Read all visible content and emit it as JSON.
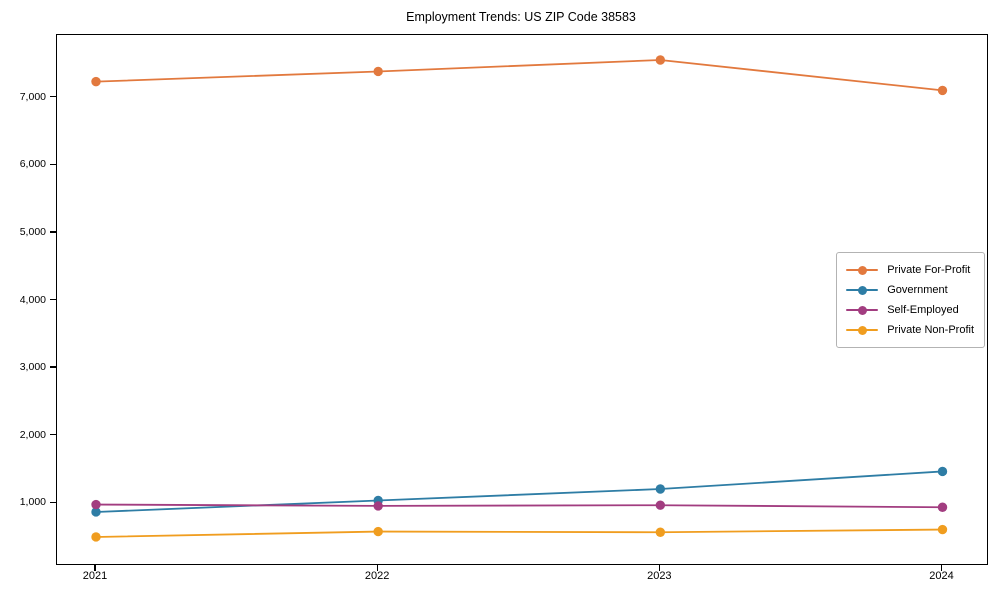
{
  "title": "Employment Trends: US ZIP Code 38583",
  "chart_data": {
    "type": "line",
    "title": "Employment Trends: US ZIP Code 38583",
    "categories": [
      "2021",
      "2022",
      "2023",
      "2024"
    ],
    "series": [
      {
        "name": "Private For-Profit",
        "color": "#e2793e",
        "values": [
          7240,
          7390,
          7560,
          7110
        ]
      },
      {
        "name": "Government",
        "color": "#2e7da5",
        "values": [
          870,
          1040,
          1210,
          1470
        ]
      },
      {
        "name": "Self-Employed",
        "color": "#a23d80",
        "values": [
          980,
          960,
          970,
          940
        ]
      },
      {
        "name": "Private Non-Profit",
        "color": "#f09d1f",
        "values": [
          500,
          580,
          570,
          610
        ]
      }
    ],
    "xlabel": "",
    "ylabel": "",
    "ylim": [
      100,
      7930
    ],
    "yticks": {
      "values": [
        1000,
        2000,
        3000,
        4000,
        5000,
        6000,
        7000
      ],
      "labels": [
        "1,000",
        "2,000",
        "3,000",
        "4,000",
        "5,000",
        "6,000",
        "7,000"
      ]
    },
    "grid": false,
    "legend_position": "center right",
    "marker": "circle",
    "line_width": 1.8,
    "marker_radius": 4.7,
    "axis_color": "#000000",
    "background_color": "#ffffff"
  }
}
